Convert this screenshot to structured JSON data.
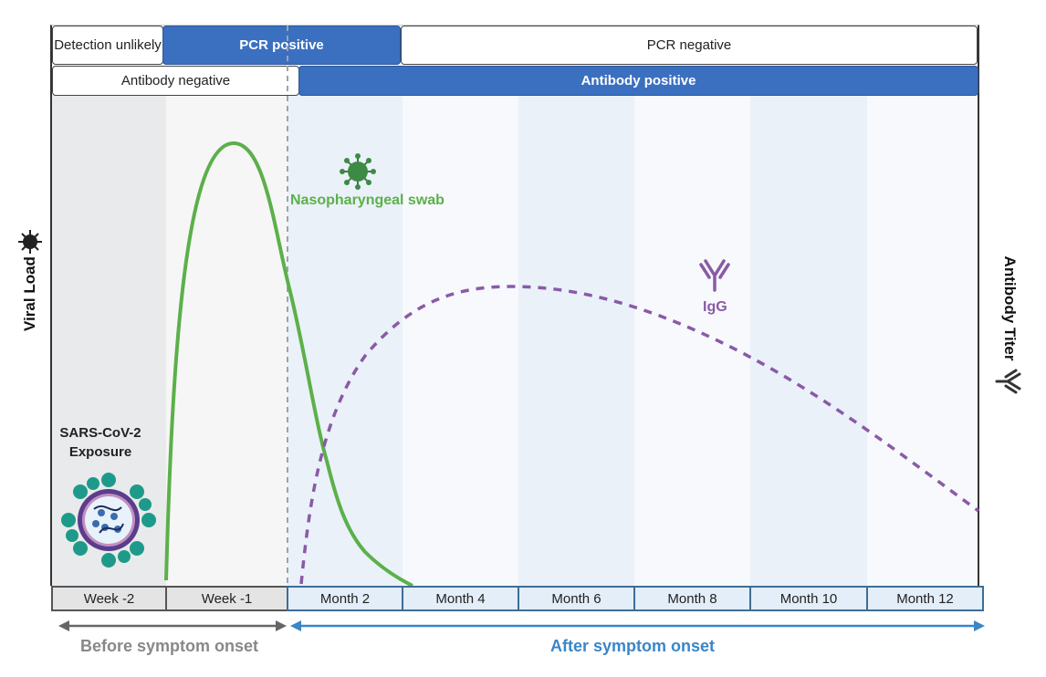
{
  "bands": {
    "detection_unlikely": "Detection unlikely",
    "pcr_positive": "PCR positive",
    "pcr_negative": "PCR negative",
    "antibody_negative": "Antibody negative",
    "antibody_positive": "Antibody positive"
  },
  "axis": {
    "ticks": [
      "Week -2",
      "Week -1",
      "Month 2",
      "Month  4",
      "Month 6",
      "Month 8",
      "Month 10",
      "Month 12"
    ],
    "left_label": "Viral Load",
    "right_label": "Antibody Titer",
    "before_label": "Before symptom onset",
    "after_label": "After symptom onset"
  },
  "annotations": {
    "exposure": "SARS-CoV-2 Exposure",
    "swab": "Nasopharyngeal swab",
    "igg": "IgG"
  },
  "colors": {
    "viral_curve": "#5cb04a",
    "igg_curve": "#8a5aa6",
    "band_blue": "#3b6fc0",
    "after_blue": "#3a86c8",
    "before_gray": "#888888"
  },
  "icons": [
    "virus-icon",
    "antibody-icon",
    "coronavirus-particle-icon"
  ]
}
